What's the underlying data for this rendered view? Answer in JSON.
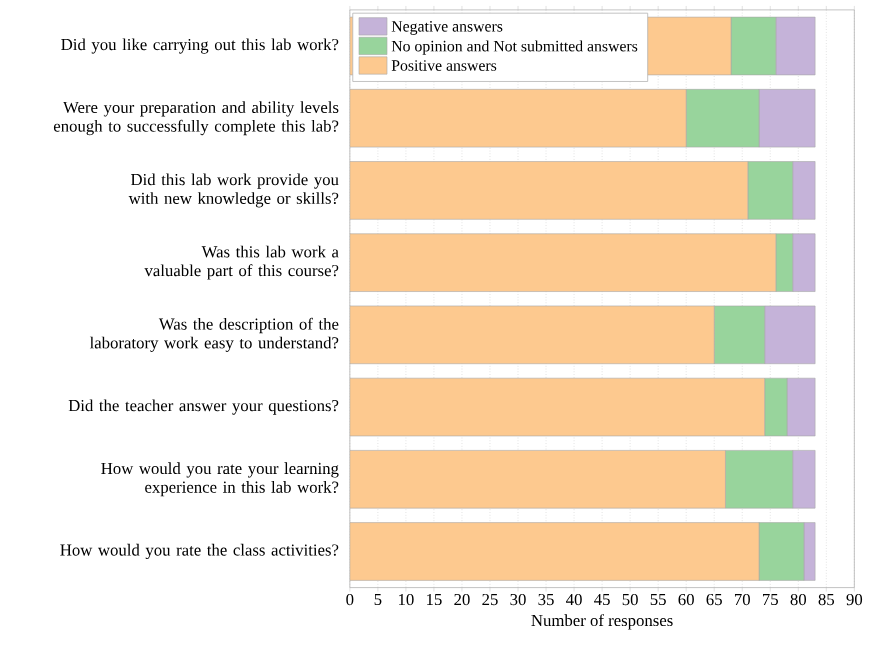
{
  "chart_data": {
    "type": "bar",
    "orientation": "horizontal",
    "stacked": true,
    "categories": [
      "Did you like carrying out this lab work?",
      "Were your preparation and ability levels enough to successfully complete this lab?",
      "Did this lab work provide you with new knowledge or skills?",
      "Was this lab work a valuable part of this course?",
      "Was the description of the laboratory work easy to understand?",
      "Did the teacher answer your questions?",
      "How would you rate your learning experience in this lab work?",
      "How would you rate the class activities?"
    ],
    "series": [
      {
        "name": "Positive answers",
        "color": "#fdc98f",
        "values": [
          68,
          60,
          71,
          76,
          65,
          74,
          67,
          73
        ]
      },
      {
        "name": "No opinion and Not submitted answers",
        "color": "#98d49c",
        "values": [
          8,
          13,
          8,
          3,
          9,
          4,
          12,
          8
        ]
      },
      {
        "name": "Negative answers",
        "color": "#c5b3d9",
        "values": [
          7,
          10,
          4,
          4,
          9,
          5,
          4,
          2
        ]
      }
    ],
    "xlabel": "Number of responses",
    "xlim": [
      0,
      90
    ],
    "xticks": [
      0,
      5,
      10,
      15,
      20,
      25,
      30,
      35,
      40,
      45,
      50,
      55,
      60,
      65,
      70,
      75,
      80,
      85,
      90
    ],
    "grid": "x",
    "legend": "top left"
  }
}
